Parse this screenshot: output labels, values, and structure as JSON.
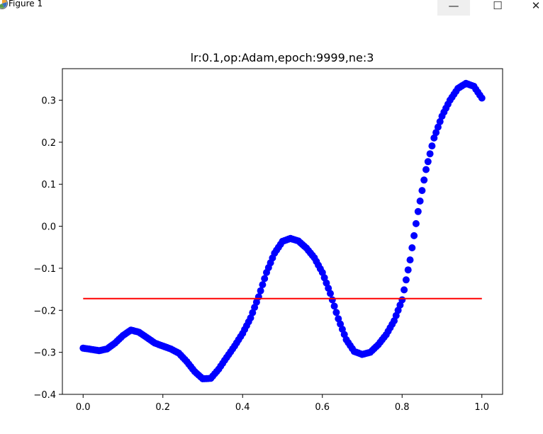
{
  "window": {
    "title": "Figure 1",
    "minimize_glyph": "—",
    "maximize_glyph": "☐",
    "close_glyph": "✕",
    "icon": "matplotlib-icon"
  },
  "chart_data": {
    "type": "scatter",
    "title": "lr:0.1,op:Adam,epoch:9999,ne:3",
    "xlabel": "",
    "ylabel": "",
    "xlim": [
      -0.052,
      1.052
    ],
    "ylim": [
      -0.4,
      0.375
    ],
    "xticks": [
      0.0,
      0.2,
      0.4,
      0.6,
      0.8,
      1.0
    ],
    "xtick_labels": [
      "0.0",
      "0.2",
      "0.4",
      "0.6",
      "0.8",
      "1.0"
    ],
    "yticks": [
      -0.4,
      -0.3,
      -0.2,
      -0.1,
      0.0,
      0.1,
      0.2,
      0.3
    ],
    "ytick_labels": [
      "−0.4",
      "−0.3",
      "−0.2",
      "−0.1",
      "0.0",
      "0.1",
      "0.2",
      "0.3"
    ],
    "grid": false,
    "series": [
      {
        "kind": "scatter",
        "color": "#0000ff",
        "x": [
          0.0,
          0.02,
          0.04,
          0.06,
          0.08,
          0.1,
          0.12,
          0.14,
          0.16,
          0.18,
          0.2,
          0.22,
          0.24,
          0.26,
          0.28,
          0.3,
          0.32,
          0.34,
          0.36,
          0.38,
          0.4,
          0.42,
          0.44,
          0.46,
          0.48,
          0.5,
          0.52,
          0.54,
          0.56,
          0.58,
          0.6,
          0.62,
          0.64,
          0.66,
          0.68,
          0.7,
          0.72,
          0.74,
          0.76,
          0.78,
          0.8,
          0.82,
          0.84,
          0.86,
          0.88,
          0.9,
          0.92,
          0.94,
          0.96,
          0.98,
          1.0
        ],
        "y": [
          -0.29,
          -0.293,
          -0.296,
          -0.292,
          -0.278,
          -0.26,
          -0.247,
          -0.252,
          -0.265,
          -0.278,
          -0.285,
          -0.292,
          -0.302,
          -0.322,
          -0.346,
          -0.363,
          -0.362,
          -0.34,
          -0.312,
          -0.285,
          -0.255,
          -0.218,
          -0.168,
          -0.11,
          -0.064,
          -0.036,
          -0.029,
          -0.035,
          -0.052,
          -0.075,
          -0.11,
          -0.16,
          -0.22,
          -0.27,
          -0.298,
          -0.305,
          -0.3,
          -0.282,
          -0.258,
          -0.225,
          -0.175,
          -0.08,
          0.035,
          0.135,
          0.21,
          0.262,
          0.3,
          0.328,
          0.34,
          0.333,
          0.305
        ]
      },
      {
        "kind": "line",
        "color": "#ff0000",
        "x": [
          0.0,
          1.0
        ],
        "y": [
          -0.172,
          -0.172
        ]
      }
    ]
  }
}
